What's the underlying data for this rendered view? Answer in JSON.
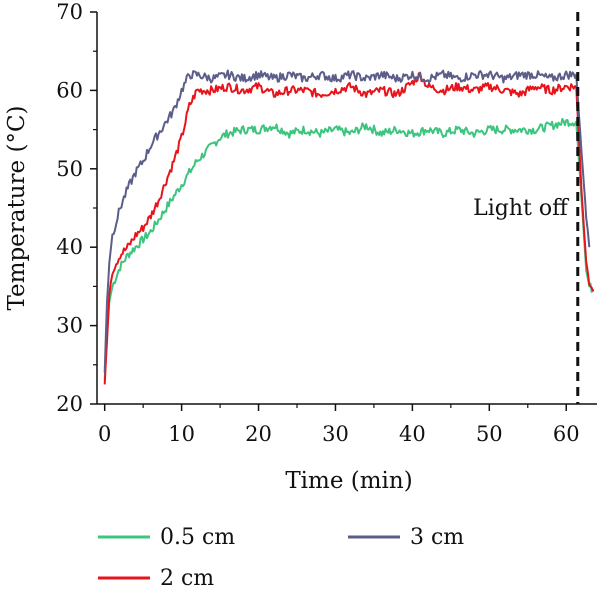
{
  "chart_data": {
    "type": "line",
    "xlabel": "Time (min)",
    "ylabel": "Temperature (°C)",
    "xlim": [
      -1,
      64
    ],
    "ylim": [
      20,
      70
    ],
    "xticks": [
      0,
      10,
      20,
      30,
      40,
      50,
      60
    ],
    "yticks": [
      20,
      30,
      40,
      50,
      60,
      70
    ],
    "grid": false,
    "legend_position": "bottom",
    "annotations": [
      {
        "text": "Light off",
        "x": 61.5,
        "style": "dashed vertical line"
      }
    ],
    "series": [
      {
        "name": "0.5 cm",
        "color": "#3dc47e",
        "x": [
          0,
          0.3,
          0.6,
          1,
          2,
          3,
          4,
          5,
          6,
          7,
          8,
          9,
          10,
          11,
          12,
          13,
          14,
          15,
          16,
          18,
          20,
          22,
          24,
          26,
          28,
          30,
          32,
          34,
          36,
          38,
          40,
          42,
          44,
          46,
          48,
          50,
          52,
          54,
          56,
          58,
          60,
          61.3,
          62,
          62.6,
          63,
          63.6
        ],
        "y": [
          23,
          29,
          33,
          35,
          37.5,
          39,
          40,
          41,
          42,
          43.5,
          45,
          46.5,
          48,
          49.5,
          51,
          52,
          53,
          54,
          54.5,
          55,
          55,
          55.5,
          54.5,
          55,
          54.5,
          55,
          54.5,
          55.5,
          54.5,
          55,
          54.5,
          55,
          54.5,
          55,
          54.5,
          55,
          55,
          55,
          55,
          55.5,
          56,
          56,
          46,
          37,
          35,
          34.5
        ]
      },
      {
        "name": "2 cm",
        "color": "#e8141c",
        "x": [
          0,
          0.3,
          0.6,
          1,
          2,
          3,
          4,
          5,
          6,
          7,
          8,
          9,
          10,
          11,
          12,
          13,
          14,
          16,
          18,
          20,
          22,
          24,
          26,
          28,
          30,
          32,
          34,
          36,
          38,
          40,
          41,
          42,
          44,
          46,
          48,
          50,
          52,
          54,
          56,
          58,
          60,
          61.3,
          62,
          62.6,
          63,
          63.6
        ],
        "y": [
          22.5,
          28,
          34,
          37,
          39,
          40,
          41.5,
          42.5,
          44,
          46,
          48.5,
          51,
          54,
          58,
          60,
          60,
          60,
          60.5,
          60,
          60.5,
          59.5,
          60,
          60,
          59.5,
          60,
          60.5,
          59.5,
          60,
          59.5,
          61,
          62,
          60.5,
          60,
          60.5,
          60,
          60.5,
          60,
          59.5,
          60.5,
          60,
          60.5,
          60.5,
          47,
          38,
          35.5,
          34.5
        ]
      },
      {
        "name": "3 cm",
        "color": "#5c5e8a",
        "x": [
          0,
          0.3,
          0.6,
          1,
          2,
          3,
          4,
          5,
          6,
          7,
          8,
          9,
          10,
          11,
          12,
          14,
          16,
          18,
          20,
          22,
          24,
          26,
          28,
          30,
          32,
          34,
          36,
          38,
          40,
          42,
          44,
          46,
          48,
          50,
          52,
          54,
          56,
          58,
          60,
          61.3,
          62,
          62.6,
          63
        ],
        "y": [
          24,
          33,
          38,
          41.5,
          45,
          47.5,
          49.5,
          51,
          53,
          54.5,
          56,
          57.5,
          60,
          62,
          62,
          61.5,
          62,
          61.5,
          62,
          61.5,
          62,
          61.5,
          62,
          61.5,
          62,
          61.5,
          62,
          61.5,
          62,
          61.5,
          62,
          61.5,
          62,
          62,
          61.5,
          62,
          62,
          61.5,
          62,
          62,
          52,
          44,
          40
        ]
      }
    ]
  }
}
